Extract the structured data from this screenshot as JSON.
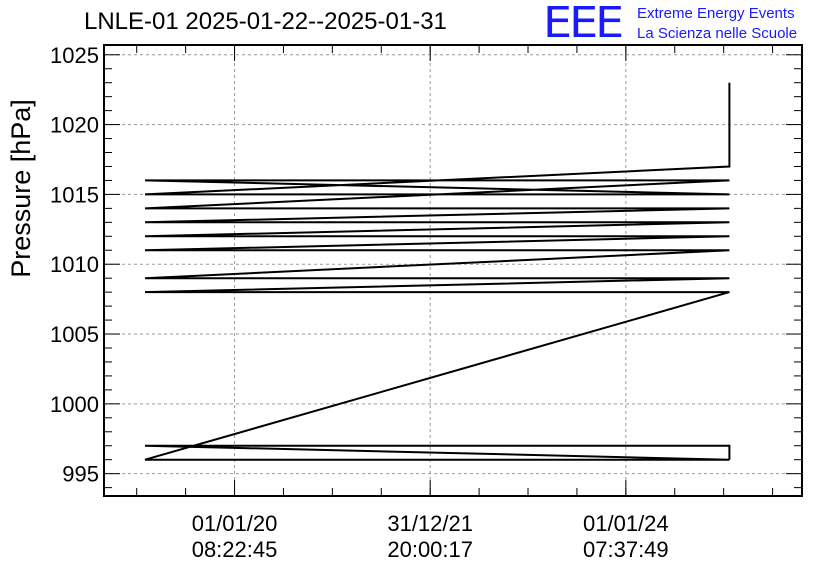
{
  "page": {
    "title": "LNLE-01 2025-01-22--2025-01-31",
    "logo": {
      "mark": "EEE",
      "line1": "Extreme Energy Events",
      "line2": "La Scienza nelle Scuole",
      "color": "#1a1aff"
    }
  },
  "chart_data": {
    "type": "line",
    "title": "LNLE-01 2025-01-22--2025-01-31",
    "ylabel": "Pressure [hPa]",
    "xlabel": "",
    "ylim": [
      993.4,
      1025.7
    ],
    "yticks": [
      995,
      1000,
      1005,
      1010,
      1015,
      1020,
      1025
    ],
    "xlim": [
      "2018-09-01 00:00:00",
      "2025-10-20 00:00:00"
    ],
    "xticks": [
      {
        "x": "2020-01-01 08:22:45",
        "date": "01/01/20",
        "time": "08:22:45"
      },
      {
        "x": "2021-12-31 20:00:17",
        "date": "31/12/21",
        "time": "20:00:17"
      },
      {
        "x": "2024-01-01 07:37:49",
        "date": "01/01/24",
        "time": "07:37:49"
      }
    ],
    "grid": true,
    "line_color": "#000000",
    "series": [
      {
        "x": [
          "2025-01-22 00:00:00",
          "2025-01-22 00:00:00",
          "2019-02-01 00:00:00",
          "2025-01-22 00:00:00",
          "2019-02-01 00:00:00",
          "2025-01-22 00:00:00",
          "2019-02-01 00:00:00",
          "2025-01-22 00:00:00",
          "2019-02-01 00:00:00",
          "2025-01-22 00:00:00",
          "2019-02-01 00:00:00",
          "2025-01-22 00:00:00",
          "2019-02-01 00:00:00",
          "2025-01-22 00:00:00",
          "2019-02-01 00:00:00",
          "2025-01-22 00:00:00",
          "2019-02-01 00:00:00",
          "2025-01-22 00:00:00",
          "2019-02-01 00:00:00",
          "2025-01-22 00:00:00",
          "2019-02-01 00:00:00",
          "2025-01-22 00:00:00",
          "2025-01-22 00:00:00",
          "2025-01-22 00:00:00",
          "2025-01-22 00:00:00"
        ],
        "y": [
          996.0,
          997.0,
          997.0,
          996.0,
          996.0,
          1008.0,
          1008.0,
          1009.0,
          1009.0,
          1011.0,
          1011.0,
          1012.0,
          1012.0,
          1013.0,
          1013.0,
          1014.0,
          1014.0,
          1016.0,
          1016.0,
          1015.0,
          1015.0,
          1017.0,
          1018.0,
          1018.0,
          1023.0
        ]
      }
    ]
  }
}
